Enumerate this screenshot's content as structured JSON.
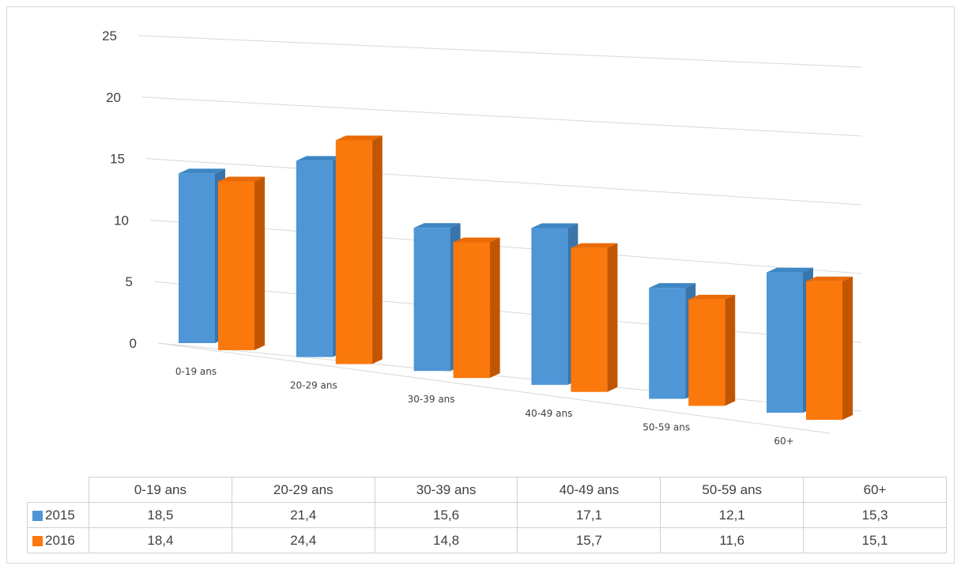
{
  "chart_data": {
    "type": "bar",
    "style": "3d-clustered-column",
    "categories": [
      "0-19 ans",
      "20-29 ans",
      "30-39 ans",
      "40-49 ans",
      "50-59 ans",
      "60+"
    ],
    "series": [
      {
        "name": "2015",
        "values": [
          18.5,
          21.4,
          15.6,
          17.1,
          12.1,
          15.3
        ],
        "color": "#4e96d6",
        "side_color": "#3a75aa",
        "top_color": "#3e86c4"
      },
      {
        "name": "2016",
        "values": [
          18.4,
          24.4,
          14.8,
          15.7,
          11.6,
          15.1
        ],
        "color": "#fb780d",
        "side_color": "#c25600",
        "top_color": "#e96a06"
      }
    ],
    "y_ticks": [
      "0",
      "5",
      "10",
      "15",
      "20",
      "25"
    ],
    "ylim": [
      0,
      25
    ],
    "grid": true,
    "legend": "data-table-below"
  },
  "table": {
    "headers": [
      "0-19 ans",
      "20-29 ans",
      "30-39 ans",
      "40-49 ans",
      "50-59 ans",
      "60+"
    ],
    "rows": [
      {
        "label": "2015",
        "values": [
          "18,5",
          "21,4",
          "15,6",
          "17,1",
          "12,1",
          "15,3"
        ]
      },
      {
        "label": "2016",
        "values": [
          "18,4",
          "24,4",
          "14,8",
          "15,7",
          "11,6",
          "15,1"
        ]
      }
    ]
  }
}
